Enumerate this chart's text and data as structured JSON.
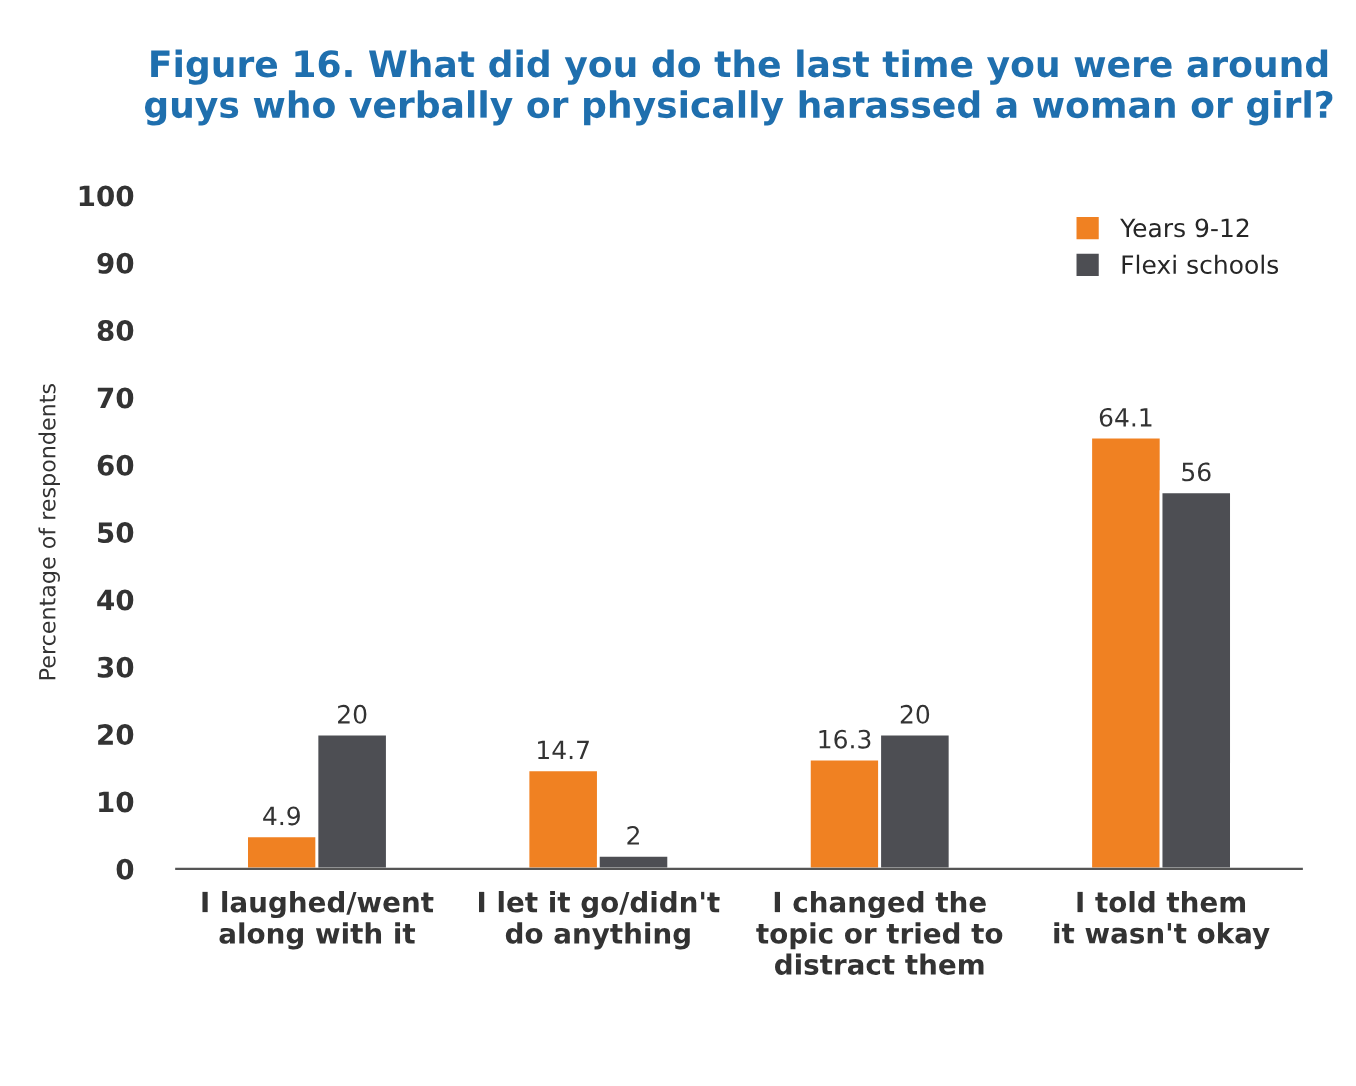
{
  "chart_data": {
    "type": "bar",
    "title": "Figure 16. What did you do the last time you were around guys who verbally or physically harassed a woman or girl?",
    "ylabel": "Percentage of respondents",
    "categories": [
      "I laughed/went\nalong with it",
      "I let it go/didn't\ndo anything",
      "I changed the\ntopic or tried to\ndistract them",
      "I told them\nit wasn't okay"
    ],
    "series": [
      {
        "name": "Years 9-12",
        "color": "#f08122",
        "values": [
          4.9,
          14.7,
          16.3,
          64.1
        ]
      },
      {
        "name": "Flexi schools",
        "color": "#4d4e53",
        "values": [
          20,
          2,
          20,
          56
        ]
      }
    ],
    "ylim": [
      0,
      100
    ],
    "yticks": [
      0,
      10,
      20,
      30,
      40,
      50,
      60,
      70,
      80,
      90,
      100
    ],
    "data_labels": true,
    "grid": false,
    "legend": "top right"
  }
}
